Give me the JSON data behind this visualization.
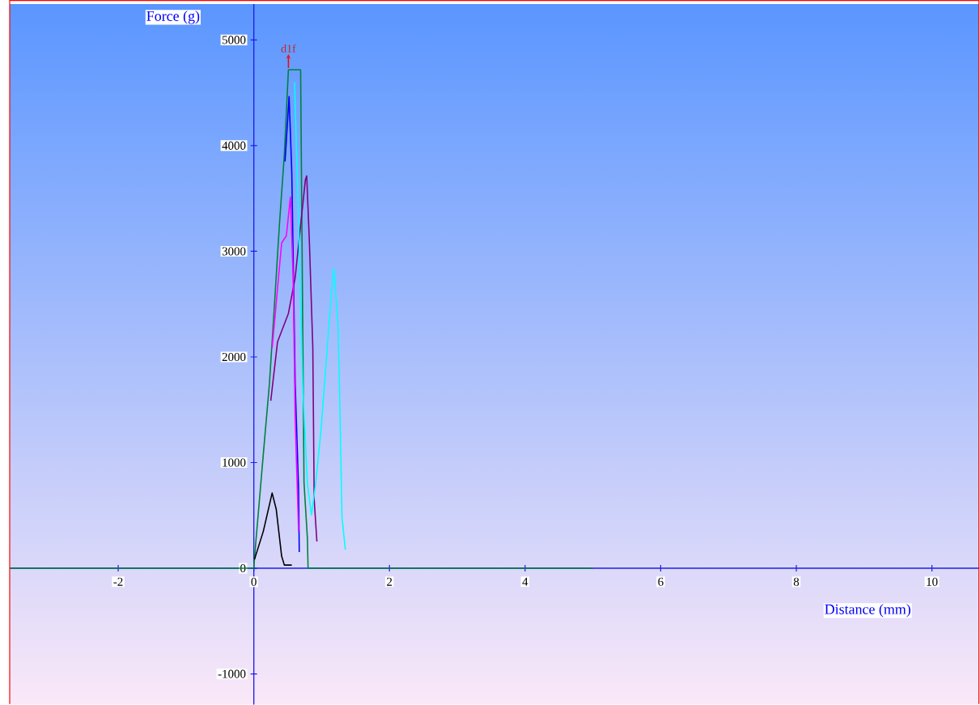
{
  "chart_data": {
    "type": "line",
    "xlabel": "Distance (mm)",
    "ylabel": "Force (g)",
    "xlim": [
      -3.6,
      10.7
    ],
    "ylim": [
      -1290,
      5340
    ],
    "xticks": [
      -2,
      0,
      2,
      4,
      6,
      8,
      10
    ],
    "yticks": [
      -1000,
      0,
      1000,
      2000,
      3000,
      4000,
      5000
    ],
    "grid": false,
    "legend": false,
    "annotations": [
      {
        "text": "d1f",
        "x": 0.51,
        "y": 4720
      }
    ],
    "series": [
      {
        "color": "#008040",
        "x": [
          -3.6,
          0,
          0.01,
          0.14,
          0.23,
          0.3,
          0.38,
          0.45,
          0.51,
          0.69,
          0.74,
          0.79,
          0.8,
          5
        ],
        "values": [
          0,
          0,
          100,
          1080,
          1746,
          2450,
          3277,
          3913,
          4717,
          4717,
          812,
          283,
          0,
          0
        ]
      },
      {
        "color": "#000000",
        "x": [
          0.01,
          0.14,
          0.27,
          0.33,
          0.41,
          0.45,
          0.56
        ],
        "values": [
          84,
          350,
          712,
          560,
          115,
          30,
          30
        ]
      },
      {
        "color": "#800080",
        "x": [
          0.25,
          0.35,
          0.51,
          0.61,
          0.69,
          0.76,
          0.78,
          0.82,
          0.87,
          0.89,
          0.93
        ],
        "values": [
          1585,
          2144,
          2412,
          2749,
          3247,
          3675,
          3714,
          3078,
          2083,
          651,
          253
        ]
      },
      {
        "color": "#0000ff",
        "x": [
          0.46,
          0.52,
          0.56,
          0.61,
          0.66,
          0.67
        ],
        "values": [
          3850,
          4464,
          3744,
          1746,
          750,
          153
        ]
      },
      {
        "color": "#00ffff",
        "x": [
          0.6,
          0.66,
          0.72,
          0.79,
          0.85,
          0.91,
          0.99,
          1.05,
          1.08,
          1.14,
          1.18,
          1.24,
          1.26,
          1.28,
          1.3,
          1.35
        ],
        "values": [
          4600,
          3300,
          1746,
          800,
          505,
          789,
          1302,
          1807,
          2067,
          2573,
          2841,
          2320,
          1807,
          1172,
          482,
          176
        ]
      },
      {
        "color": "#ff00ff",
        "x": [
          0.27,
          0.41,
          0.48,
          0.54,
          0.58,
          0.61,
          0.66
        ],
        "values": [
          2083,
          3078,
          3147,
          3515,
          2749,
          1417,
          352
        ]
      }
    ]
  }
}
